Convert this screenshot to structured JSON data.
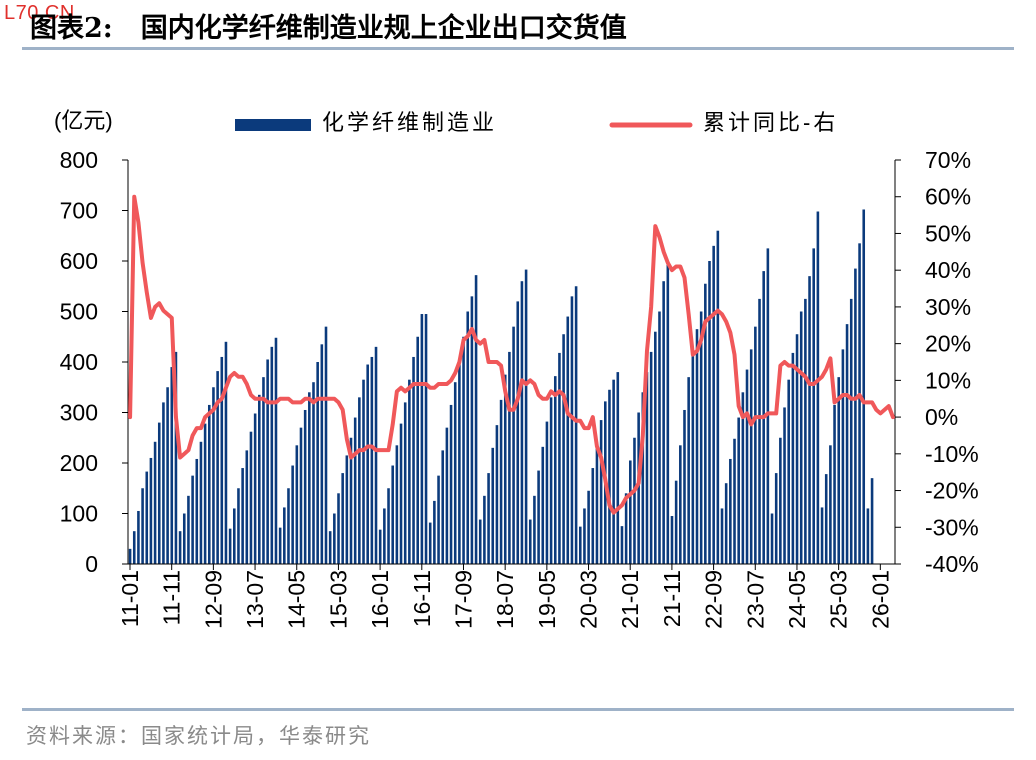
{
  "watermark": "L70.CN",
  "header": {
    "figure_no": "图表2:",
    "title": "国内化学纤维制造业规上企业出口交货值"
  },
  "source": "资料来源：国家统计局，华泰研究",
  "colors": {
    "bar": "#0b3a7c",
    "line": "#f0585a",
    "rule": "#9fb2c8",
    "source_text": "#8a8a8a"
  },
  "chart_data": {
    "type": "bar+line",
    "unit_label": "(亿元)",
    "legend_position": "top",
    "grid": false,
    "y_left": {
      "min": 0,
      "max": 800,
      "ticks": [
        "0",
        "100",
        "200",
        "300",
        "400",
        "500",
        "600",
        "700",
        "800"
      ]
    },
    "y_right": {
      "min": -40,
      "max": 70,
      "ticks": [
        "-40%",
        "-30%",
        "-20%",
        "-10%",
        "0%",
        "10%",
        "20%",
        "30%",
        "40%",
        "50%",
        "60%",
        "70%"
      ]
    },
    "x_tick_labels": [
      "11-01",
      "11-11",
      "12-09",
      "13-07",
      "14-05",
      "15-03",
      "16-01",
      "16-11",
      "17-09",
      "18-07",
      "19-05",
      "20-03",
      "21-01",
      "21-11",
      "22-09",
      "23-07",
      "24-05",
      "25-03",
      "26-01"
    ],
    "series": [
      {
        "name": "化学纤维制造业",
        "type": "bar",
        "axis": "left",
        "years": [
          {
            "start": "2011-01",
            "values": [
              30,
              65,
              105,
              150,
              183,
              210,
              242,
              280,
              320,
              350,
              390,
              420
            ]
          },
          {
            "start": "2012-01",
            "values": [
              65,
              100,
              135,
              175,
              208,
              242,
              278,
              315,
              350,
              382,
              410,
              440
            ]
          },
          {
            "start": "2013-01",
            "values": [
              70,
              110,
              150,
              190,
              225,
              262,
              298,
              335,
              370,
              405,
              430,
              448
            ]
          },
          {
            "start": "2014-01",
            "values": [
              72,
              112,
              150,
              195,
              235,
              270,
              305,
              340,
              360,
              400,
              435,
              470
            ]
          },
          {
            "start": "2015-01",
            "values": [
              65,
              100,
              140,
              180,
              215,
              250,
              290,
              330,
              365,
              395,
              410,
              430
            ]
          },
          {
            "start": "2016-01",
            "values": [
              68,
              110,
              150,
              195,
              235,
              278,
              320,
              365,
              410,
              450,
              495,
              495
            ]
          },
          {
            "start": "2017-01",
            "values": [
              82,
              125,
              175,
              225,
              270,
              315,
              360,
              405,
              450,
              500,
              530,
              572
            ]
          },
          {
            "start": "2018-01",
            "values": [
              88,
              135,
              180,
              230,
              275,
              325,
              375,
              420,
              470,
              520,
              560,
              583
            ]
          },
          {
            "start": "2019-01",
            "values": [
              88,
              135,
              185,
              232,
              282,
              330,
              372,
              418,
              455,
              490,
              530,
              550
            ]
          },
          {
            "start": "2020-01",
            "values": [
              74,
              110,
              145,
              190,
              240,
              285,
              322,
              345,
              365,
              380
            ]
          },
          {
            "start": "2021-01",
            "values": [
              75,
              140,
              205,
              250,
              300,
              340,
              380,
              420,
              460,
              500,
              560,
              600
            ]
          },
          {
            "start": "2022-01",
            "values": [
              95,
              165,
              235,
              305,
              370,
              420,
              465,
              500,
              555,
              600,
              630,
              660
            ]
          },
          {
            "start": "2023-01",
            "values": [
              110,
              160,
              208,
              248,
              290,
              340,
              385,
              425,
              470,
              525,
              580,
              625
            ]
          },
          {
            "start": "2024-01",
            "values": [
              100,
              180,
              250,
              310,
              365,
              418,
              455,
              500,
              525,
              570,
              625,
              698
            ]
          },
          {
            "start": "2025-01",
            "values": [
              112,
              178,
              235,
              315,
              370,
              425,
              475,
              525,
              585,
              635,
              702
            ]
          },
          {
            "start": "2026-01",
            "values": [
              110,
              170
            ]
          }
        ]
      },
      {
        "name": "累计同比-右",
        "type": "line",
        "axis": "right",
        "values": [
          0,
          60,
          53,
          42,
          34,
          27,
          30,
          31,
          29,
          28,
          27,
          0,
          -11,
          -10,
          -9,
          -5,
          -3,
          -3,
          0,
          1,
          2,
          4,
          5,
          8,
          11,
          12,
          11,
          11,
          9,
          6,
          5,
          5,
          5,
          4,
          4,
          4,
          5,
          5,
          5,
          4,
          4,
          4,
          5,
          5,
          4,
          5,
          5,
          5,
          5,
          5,
          4,
          2,
          -6,
          -11,
          -10,
          -9,
          -9,
          -8,
          -8,
          -9,
          -9,
          -9,
          -9,
          -2,
          7,
          8,
          7,
          8,
          9,
          9,
          9,
          9,
          8,
          8,
          9,
          9,
          9,
          10,
          12,
          15,
          21,
          22,
          24,
          21,
          20,
          21,
          15,
          15,
          15,
          14,
          7,
          2,
          2,
          5,
          10,
          9,
          10,
          9,
          6,
          5,
          5,
          7,
          6,
          7,
          6,
          1,
          0,
          -1,
          -1,
          -3,
          -3,
          0,
          -8,
          -11,
          -17,
          -24,
          -26,
          -25,
          -24,
          -22,
          -21,
          -20,
          -18,
          -5,
          18,
          30,
          52,
          49,
          45,
          42,
          40,
          41,
          41,
          38,
          28,
          17,
          18,
          21,
          26,
          27,
          28,
          29,
          28,
          26,
          23,
          17,
          3,
          0,
          1,
          -2,
          0,
          0,
          0,
          1,
          1,
          1,
          14,
          15,
          14,
          14,
          13,
          12,
          11,
          9,
          9,
          10,
          11,
          13,
          16,
          4,
          5,
          6,
          6,
          5,
          5,
          6,
          4,
          4,
          4,
          2,
          1,
          2,
          3,
          0
        ]
      }
    ]
  }
}
